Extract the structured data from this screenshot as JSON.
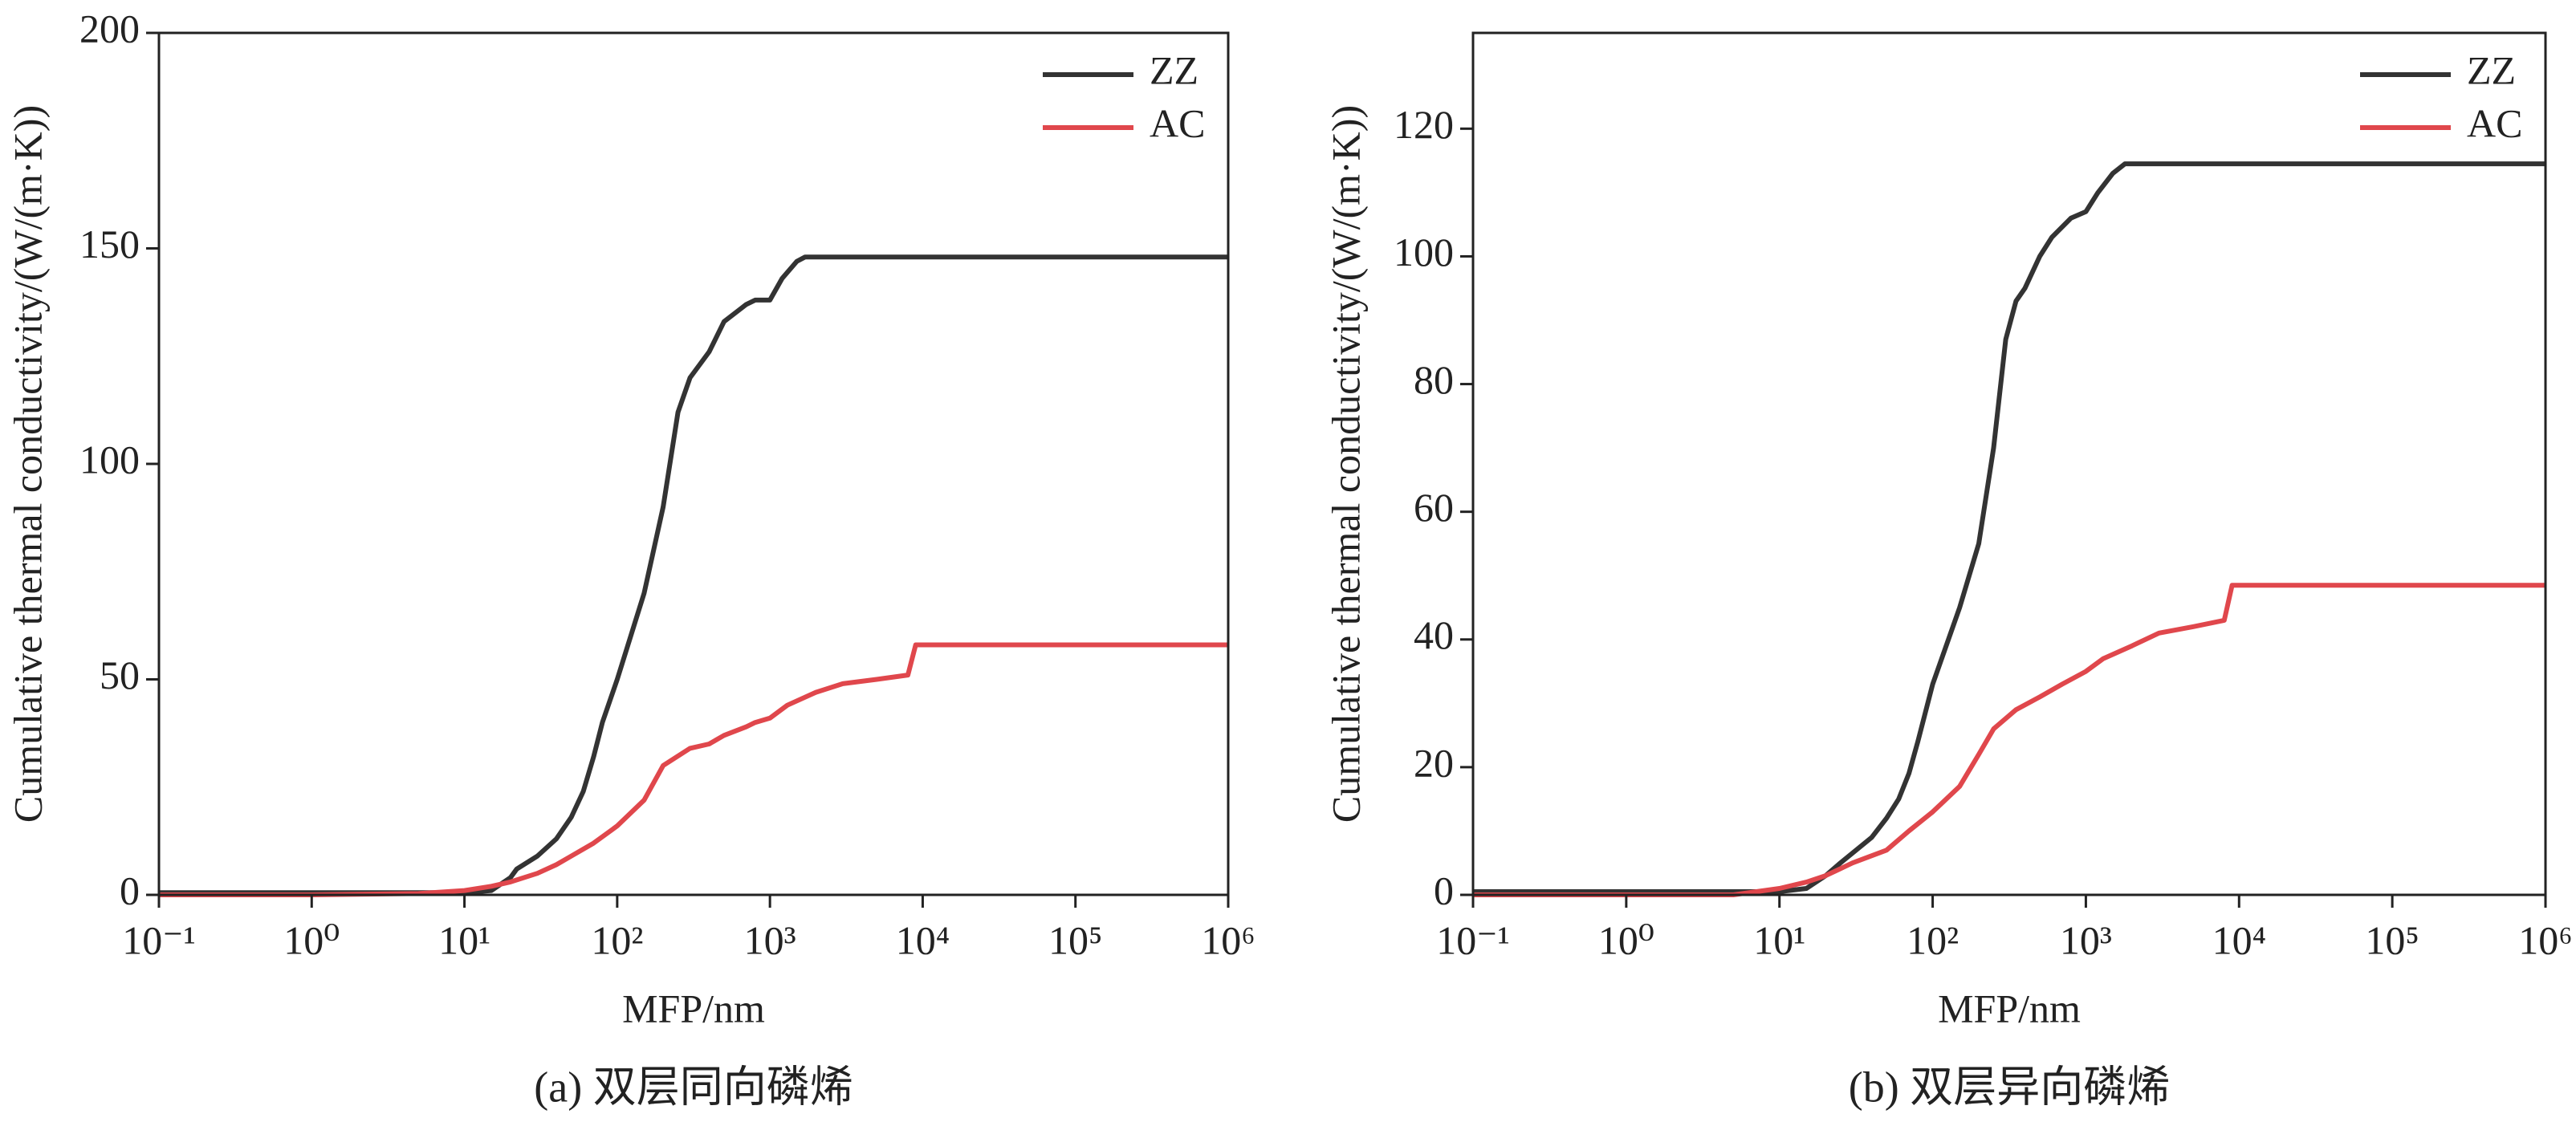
{
  "chart_data": [
    {
      "type": "line",
      "xlabel": "MFP/nm",
      "ylabel": "Cumulative thermal conductivity/(W/(m·K))",
      "caption": "(a) 双层同向磷烯",
      "log_x": true,
      "xlim": [
        0.1,
        1000000
      ],
      "ylim": [
        0,
        200
      ],
      "xticks": [
        {
          "value": 0.1,
          "label": "10⁻¹"
        },
        {
          "value": 1,
          "label": "10⁰"
        },
        {
          "value": 10,
          "label": "10¹"
        },
        {
          "value": 100,
          "label": "10²"
        },
        {
          "value": 1000,
          "label": "10³"
        },
        {
          "value": 10000,
          "label": "10⁴"
        },
        {
          "value": 100000,
          "label": "10⁵"
        },
        {
          "value": 1000000,
          "label": "10⁶"
        }
      ],
      "yticks": [
        0,
        50,
        100,
        150,
        200
      ],
      "legend": "upper right",
      "series": [
        {
          "name": "ZZ",
          "color": "#333333",
          "x": [
            0.1,
            1,
            5,
            10,
            15,
            20,
            22,
            30,
            40,
            50,
            60,
            70,
            80,
            100,
            150,
            200,
            250,
            300,
            400,
            500,
            700,
            800,
            1000,
            1200,
            1500,
            1700,
            1000000
          ],
          "values": [
            0.5,
            0.5,
            0.5,
            0.5,
            1,
            4,
            6,
            9,
            13,
            18,
            24,
            32,
            40,
            50,
            70,
            90,
            112,
            120,
            126,
            133,
            137,
            138,
            138,
            143,
            147,
            148,
            148
          ]
        },
        {
          "name": "AC",
          "color": "#e0474c",
          "x": [
            0.1,
            1,
            5,
            10,
            15,
            20,
            30,
            40,
            50,
            70,
            100,
            150,
            200,
            300,
            400,
            500,
            700,
            800,
            1000,
            1300,
            2000,
            3000,
            5000,
            8000,
            9000,
            1000000
          ],
          "values": [
            0,
            0,
            0.3,
            1,
            2,
            3,
            5,
            7,
            9,
            12,
            16,
            22,
            30,
            34,
            35,
            37,
            39,
            40,
            41,
            44,
            47,
            49,
            50,
            51,
            58,
            58
          ]
        }
      ]
    },
    {
      "type": "line",
      "xlabel": "MFP/nm",
      "ylabel": "Cumulative thermal conductivity/(W/(m·K))",
      "caption": "(b) 双层异向磷烯",
      "log_x": true,
      "xlim": [
        0.1,
        1000000
      ],
      "ylim": [
        0,
        135
      ],
      "xticks": [
        {
          "value": 0.1,
          "label": "10⁻¹"
        },
        {
          "value": 1,
          "label": "10⁰"
        },
        {
          "value": 10,
          "label": "10¹"
        },
        {
          "value": 100,
          "label": "10²"
        },
        {
          "value": 1000,
          "label": "10³"
        },
        {
          "value": 10000,
          "label": "10⁴"
        },
        {
          "value": 100000,
          "label": "10⁵"
        },
        {
          "value": 1000000,
          "label": "10⁶"
        }
      ],
      "yticks": [
        0,
        20,
        40,
        60,
        80,
        100,
        120
      ],
      "legend": "upper right",
      "series": [
        {
          "name": "ZZ",
          "color": "#333333",
          "x": [
            0.1,
            1,
            5,
            10,
            15,
            20,
            25,
            40,
            50,
            60,
            70,
            80,
            100,
            150,
            200,
            250,
            300,
            350,
            400,
            500,
            600,
            800,
            1000,
            1200,
            1500,
            1800,
            1000000
          ],
          "values": [
            0.5,
            0.5,
            0.5,
            0.5,
            1,
            3,
            5,
            9,
            12,
            15,
            19,
            24,
            33,
            45,
            55,
            70,
            87,
            93,
            95,
            100,
            103,
            106,
            107,
            110,
            113,
            114.5,
            114.5
          ]
        },
        {
          "name": "AC",
          "color": "#e0474c",
          "x": [
            0.1,
            5,
            10,
            15,
            20,
            30,
            50,
            70,
            100,
            150,
            200,
            250,
            350,
            500,
            700,
            1000,
            1300,
            2000,
            3000,
            5000,
            8000,
            9000,
            1000000
          ],
          "values": [
            0,
            0,
            1,
            2,
            3,
            5,
            7,
            10,
            13,
            17,
            22,
            26,
            29,
            31,
            33,
            35,
            37,
            39,
            41,
            42,
            43,
            48.5,
            48.5
          ]
        }
      ]
    }
  ]
}
